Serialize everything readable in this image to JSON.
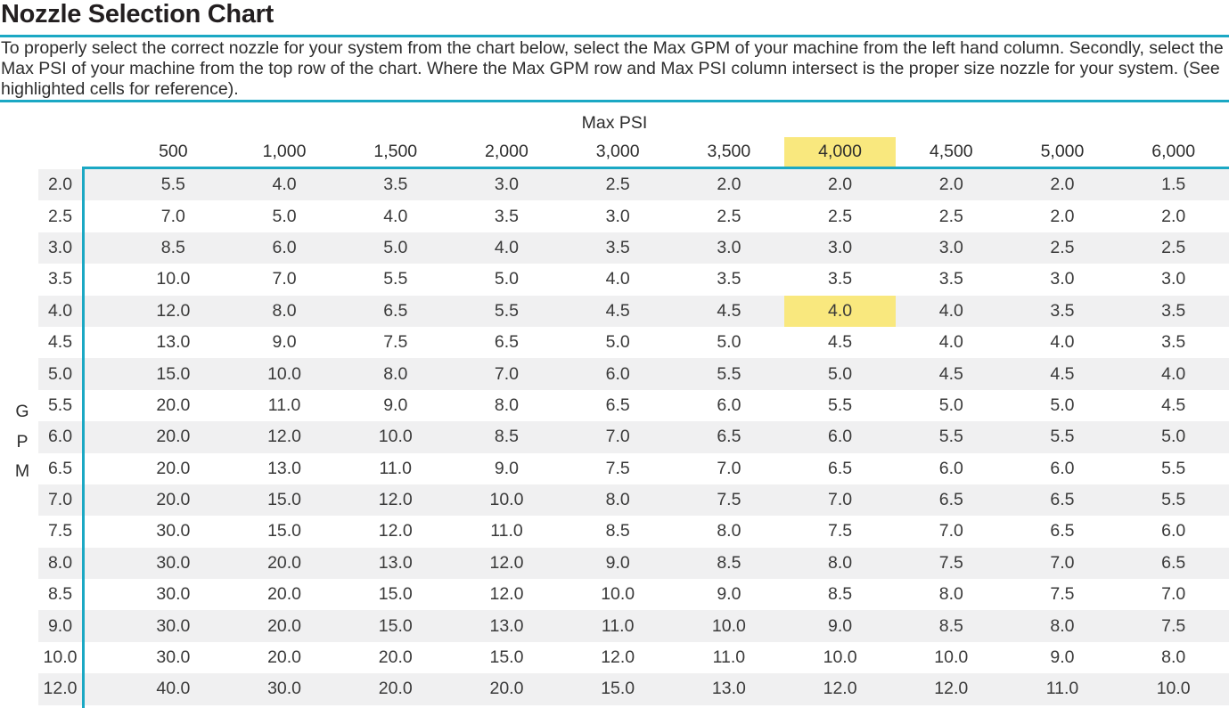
{
  "page": {
    "title": "Nozzle Selection Chart",
    "intro": "To properly select the correct nozzle for your system from the chart below, select the Max GPM of your machine from the left hand column. Secondly, select the Max PSI of your machine from the top row of the chart. Where the Max GPM row and Max PSI column intersect is the proper size nozzle for your system. (See highlighted cells for reference)."
  },
  "colors": {
    "accent_teal": "#1BA8C4",
    "highlight_yellow": "#F9E87E",
    "row_stripe_gray": "#F0F0F1"
  },
  "chart_data": {
    "type": "table",
    "title": "Nozzle Selection Chart",
    "column_axis_label": "Max PSI",
    "row_axis_label": "GPM",
    "columns": [
      "500",
      "1,000",
      "1,500",
      "2,000",
      "3,000",
      "3,500",
      "4,000",
      "4,500",
      "5,000",
      "6,000"
    ],
    "highlighted_column_index": 6,
    "highlighted_row_index": 4,
    "rows": [
      {
        "gpm": "2.0",
        "values": [
          "5.5",
          "4.0",
          "3.5",
          "3.0",
          "2.5",
          "2.0",
          "2.0",
          "2.0",
          "2.0",
          "1.5"
        ]
      },
      {
        "gpm": "2.5",
        "values": [
          "7.0",
          "5.0",
          "4.0",
          "3.5",
          "3.0",
          "2.5",
          "2.5",
          "2.5",
          "2.0",
          "2.0"
        ]
      },
      {
        "gpm": "3.0",
        "values": [
          "8.5",
          "6.0",
          "5.0",
          "4.0",
          "3.5",
          "3.0",
          "3.0",
          "3.0",
          "2.5",
          "2.5"
        ]
      },
      {
        "gpm": "3.5",
        "values": [
          "10.0",
          "7.0",
          "5.5",
          "5.0",
          "4.0",
          "3.5",
          "3.5",
          "3.5",
          "3.0",
          "3.0"
        ]
      },
      {
        "gpm": "4.0",
        "values": [
          "12.0",
          "8.0",
          "6.5",
          "5.5",
          "4.5",
          "4.5",
          "4.0",
          "4.0",
          "3.5",
          "3.5"
        ]
      },
      {
        "gpm": "4.5",
        "values": [
          "13.0",
          "9.0",
          "7.5",
          "6.5",
          "5.0",
          "5.0",
          "4.5",
          "4.0",
          "4.0",
          "3.5"
        ]
      },
      {
        "gpm": "5.0",
        "values": [
          "15.0",
          "10.0",
          "8.0",
          "7.0",
          "6.0",
          "5.5",
          "5.0",
          "4.5",
          "4.5",
          "4.0"
        ]
      },
      {
        "gpm": "5.5",
        "values": [
          "20.0",
          "11.0",
          "9.0",
          "8.0",
          "6.5",
          "6.0",
          "5.5",
          "5.0",
          "5.0",
          "4.5"
        ]
      },
      {
        "gpm": "6.0",
        "values": [
          "20.0",
          "12.0",
          "10.0",
          "8.5",
          "7.0",
          "6.5",
          "6.0",
          "5.5",
          "5.5",
          "5.0"
        ]
      },
      {
        "gpm": "6.5",
        "values": [
          "20.0",
          "13.0",
          "11.0",
          "9.0",
          "7.5",
          "7.0",
          "6.5",
          "6.0",
          "6.0",
          "5.5"
        ]
      },
      {
        "gpm": "7.0",
        "values": [
          "20.0",
          "15.0",
          "12.0",
          "10.0",
          "8.0",
          "7.5",
          "7.0",
          "6.5",
          "6.5",
          "5.5"
        ]
      },
      {
        "gpm": "7.5",
        "values": [
          "30.0",
          "15.0",
          "12.0",
          "11.0",
          "8.5",
          "8.0",
          "7.5",
          "7.0",
          "6.5",
          "6.0"
        ]
      },
      {
        "gpm": "8.0",
        "values": [
          "30.0",
          "20.0",
          "13.0",
          "12.0",
          "9.0",
          "8.5",
          "8.0",
          "7.5",
          "7.0",
          "6.5"
        ]
      },
      {
        "gpm": "8.5",
        "values": [
          "30.0",
          "20.0",
          "15.0",
          "12.0",
          "10.0",
          "9.0",
          "8.5",
          "8.0",
          "7.5",
          "7.0"
        ]
      },
      {
        "gpm": "9.0",
        "values": [
          "30.0",
          "20.0",
          "15.0",
          "13.0",
          "11.0",
          "10.0",
          "9.0",
          "8.5",
          "8.0",
          "7.5"
        ]
      },
      {
        "gpm": "10.0",
        "values": [
          "30.0",
          "20.0",
          "20.0",
          "15.0",
          "12.0",
          "11.0",
          "10.0",
          "10.0",
          "9.0",
          "8.0"
        ]
      },
      {
        "gpm": "12.0",
        "values": [
          "40.0",
          "30.0",
          "20.0",
          "20.0",
          "15.0",
          "13.0",
          "12.0",
          "12.0",
          "11.0",
          "10.0"
        ]
      }
    ]
  }
}
